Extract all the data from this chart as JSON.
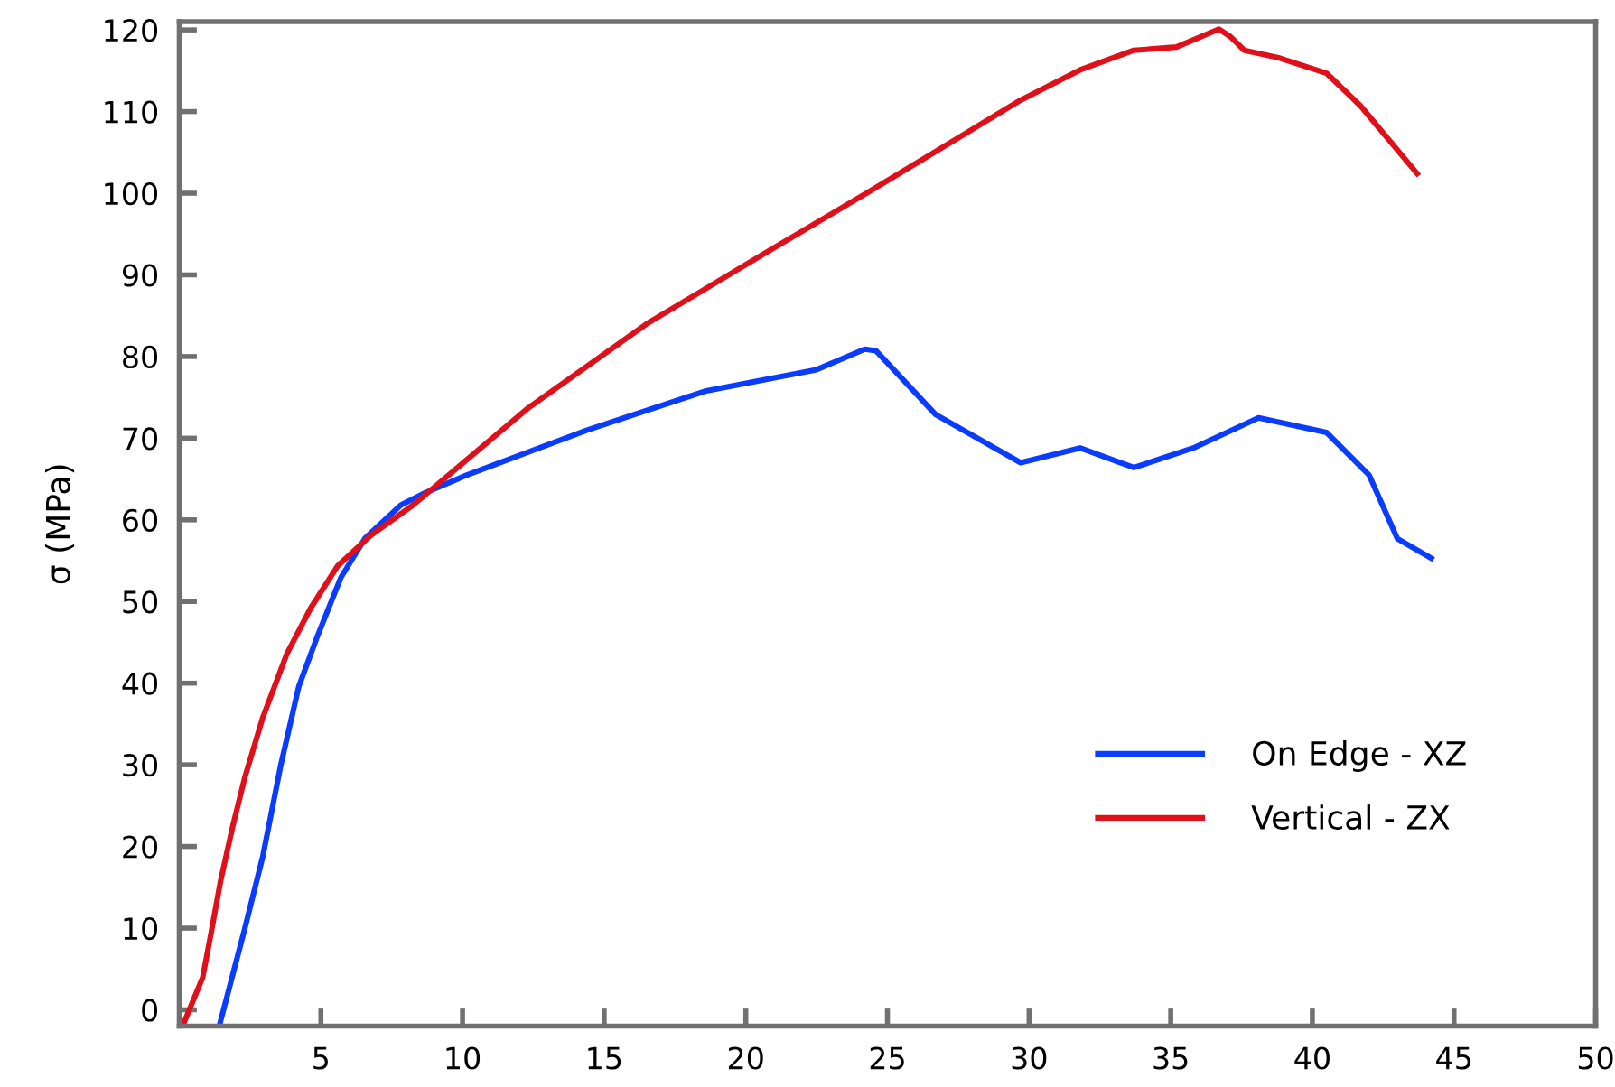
{
  "chart_data": {
    "type": "line",
    "ylabel": "σ (MPa)",
    "xlim": [
      0,
      50
    ],
    "xticks": [
      5,
      10,
      15,
      20,
      25,
      30,
      35,
      40,
      45,
      50
    ],
    "ylim": [
      -2,
      121
    ],
    "yticks": [
      0,
      10,
      20,
      30,
      40,
      50,
      60,
      70,
      80,
      90,
      100,
      110,
      120
    ],
    "grid": false,
    "legend": "lower right",
    "line_style": "solid",
    "marker": "none",
    "series": [
      {
        "name": "On Edge - XZ",
        "color": "#0a3cff",
        "x": [
          1.42,
          2.31,
          2.95,
          3.58,
          4.22,
          4.85,
          5.7,
          6.55,
          7.82,
          8.67,
          10.16,
          14.4,
          18.6,
          22.5,
          24.2,
          24.6,
          26.7,
          29.7,
          31.8,
          33.7,
          35.8,
          38.1,
          40.5,
          42.0,
          43.0,
          44.2
        ],
        "values": [
          -1.9,
          9.9,
          18.8,
          29.9,
          39.6,
          45.5,
          52.9,
          57.7,
          61.8,
          63.3,
          65.5,
          71,
          75.8,
          78.4,
          80.9,
          80.7,
          72.9,
          67,
          68.8,
          66.4,
          68.8,
          72.5,
          70.7,
          65.5,
          57.7,
          55.3
        ]
      },
      {
        "name": "Vertical - ZX",
        "color": "#e0101a",
        "x": [
          0.13,
          0.83,
          1.15,
          1.46,
          1.89,
          2.31,
          2.95,
          3.8,
          4.64,
          5.6,
          6.76,
          8.25,
          12.28,
          16.5,
          20.8,
          24.4,
          26.7,
          29.7,
          31.8,
          33.7,
          35.2,
          36.7,
          37.1,
          37.6,
          38.8,
          40.5,
          41.7,
          43.7
        ],
        "values": [
          -1.9,
          4,
          9.9,
          15.8,
          22.5,
          28.4,
          35.8,
          43.6,
          49.2,
          54.4,
          58.1,
          61.8,
          73.6,
          84,
          92.9,
          100.3,
          105.1,
          111.4,
          115.1,
          117.5,
          117.9,
          120.1,
          119.2,
          117.5,
          116.6,
          114.7,
          110.7,
          102.4
        ]
      }
    ]
  }
}
